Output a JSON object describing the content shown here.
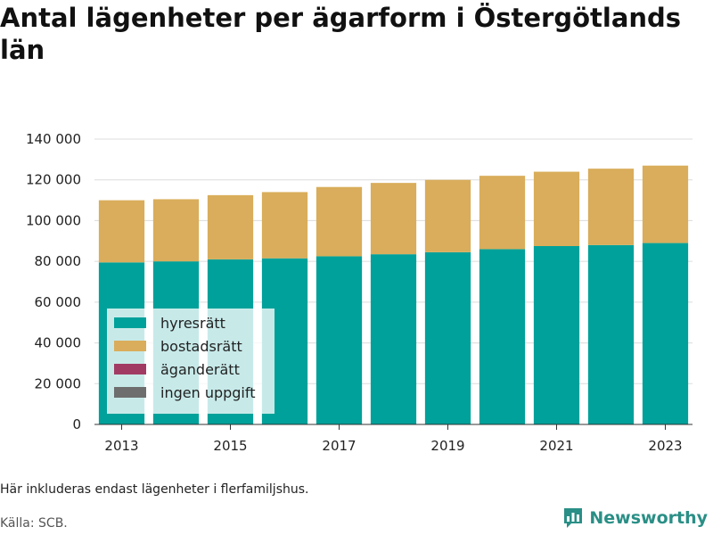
{
  "header": {
    "title": "Antal lägenheter per ägarform i Östergötlands län"
  },
  "footer": {
    "note": "Här inkluderas endast lägenheter i flerfamiljshus.",
    "source": "Källa: SCB.",
    "brand": "Newsworthy"
  },
  "colors": {
    "hyresratt": "#00a19a",
    "bostadsratt": "#d9ad5b",
    "aganderatt": "#a23b64",
    "ingen_uppgift": "#6e6e6e",
    "brand": "#2a8f86"
  },
  "chart_data": {
    "type": "bar",
    "stacked": true,
    "categories": [
      "2013",
      "2014",
      "2015",
      "2016",
      "2017",
      "2018",
      "2019",
      "2020",
      "2021",
      "2022",
      "2023"
    ],
    "x_tick_labels": [
      "2013",
      "2015",
      "2017",
      "2019",
      "2021",
      "2023"
    ],
    "series": [
      {
        "name": "hyresrätt",
        "color": "#00a19a",
        "values": [
          79500,
          80000,
          81000,
          81500,
          82500,
          83500,
          84500,
          86000,
          87500,
          88000,
          89000
        ]
      },
      {
        "name": "bostadsrätt",
        "color": "#d9ad5b",
        "values": [
          30500,
          30500,
          31500,
          32500,
          34000,
          35000,
          35500,
          36000,
          36500,
          37500,
          38000
        ]
      },
      {
        "name": "äganderätt",
        "color": "#a23b64",
        "values": [
          0,
          0,
          0,
          0,
          0,
          0,
          0,
          0,
          0,
          0,
          0
        ]
      },
      {
        "name": "ingen uppgift",
        "color": "#6e6e6e",
        "values": [
          0,
          0,
          0,
          0,
          0,
          0,
          0,
          0,
          0,
          0,
          0
        ]
      }
    ],
    "ylim": [
      0,
      140000
    ],
    "y_ticks": [
      0,
      20000,
      40000,
      60000,
      80000,
      100000,
      120000,
      140000
    ],
    "y_tick_labels": [
      "0",
      "20 000",
      "40 000",
      "60 000",
      "80 000",
      "100 000",
      "120 000",
      "140 000"
    ],
    "grid": true,
    "legend_position": "bottom-left inside"
  }
}
